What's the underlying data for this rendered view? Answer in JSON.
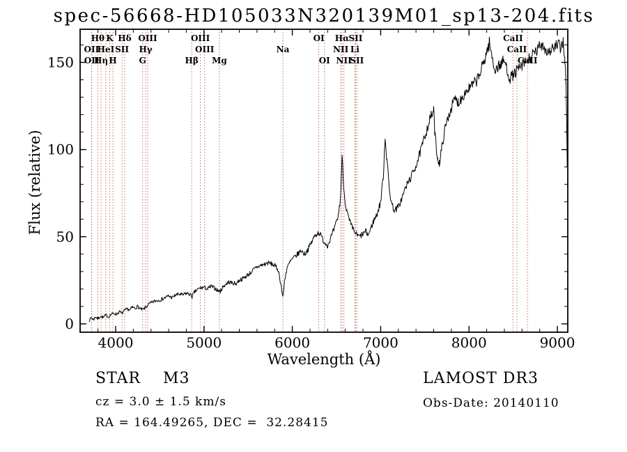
{
  "chart_data": {
    "type": "line",
    "title": "spec-56668-HD105033N320139M01_sp13-204.fits",
    "xlabel": "Wavelength (Å)",
    "ylabel": "Flux (relative)",
    "xlim": [
      3598,
      9118
    ],
    "ylim": [
      -4.8,
      169
    ],
    "xticks": [
      4000,
      5000,
      6000,
      7000,
      8000,
      9000
    ],
    "yticks": [
      0,
      50,
      100,
      150
    ],
    "x_minor_step": 200,
    "y_minor_step": 10,
    "grid": false,
    "legend": "none",
    "line_color": "#000000",
    "marker_color": "#c46a5f",
    "label_color": "#1a1a1a",
    "noise_seed": 7,
    "noise_amp": 1.0,
    "spectral_lines": [
      {
        "wl": 3727,
        "label": "OII",
        "row": 1
      },
      {
        "wl": 3729,
        "label": "OII",
        "row": 2
      },
      {
        "wl": 3798,
        "label": "Hθ",
        "row": 0
      },
      {
        "wl": 3835,
        "label": "Hη",
        "row": 2
      },
      {
        "wl": 3889,
        "label": "HeI",
        "row": 1
      },
      {
        "wl": 3933,
        "label": "K",
        "row": 0
      },
      {
        "wl": 3969,
        "label": "H",
        "row": 2
      },
      {
        "wl": 4072,
        "label": "SII",
        "row": 1
      },
      {
        "wl": 4102,
        "label": "Hδ",
        "row": 0
      },
      {
        "wl": 4305,
        "label": "G",
        "row": 2
      },
      {
        "wl": 4340,
        "label": "Hγ",
        "row": 1
      },
      {
        "wl": 4363,
        "label": "OIII",
        "row": 0
      },
      {
        "wl": 4861,
        "label": "Hβ",
        "row": 2
      },
      {
        "wl": 4959,
        "label": "OIII",
        "row": 0
      },
      {
        "wl": 5007,
        "label": "OIII",
        "row": 1
      },
      {
        "wl": 5175,
        "label": "Mg",
        "row": 2
      },
      {
        "wl": 5893,
        "label": "Na",
        "row": 1
      },
      {
        "wl": 6300,
        "label": "OI",
        "row": 0
      },
      {
        "wl": 6364,
        "label": "OI",
        "row": 2
      },
      {
        "wl": 6548,
        "label": "NII",
        "row": 1
      },
      {
        "wl": 6563,
        "label": "Hα",
        "row": 0
      },
      {
        "wl": 6584,
        "label": "NII",
        "row": 2
      },
      {
        "wl": 6708,
        "label": "Li",
        "row": 1
      },
      {
        "wl": 6716,
        "label": "SII",
        "row": 0
      },
      {
        "wl": 6731,
        "label": "SII",
        "row": 2
      },
      {
        "wl": 8498,
        "label": "CaII",
        "row": 0
      },
      {
        "wl": 8542,
        "label": "CaII",
        "row": 1
      },
      {
        "wl": 8662,
        "label": "CaII",
        "row": 2
      }
    ],
    "spectrum": [
      [
        3700,
        2
      ],
      [
        3725,
        3.5
      ],
      [
        3750,
        2.5
      ],
      [
        3775,
        4
      ],
      [
        3800,
        3
      ],
      [
        3830,
        4.5
      ],
      [
        3860,
        3.5
      ],
      [
        3890,
        5
      ],
      [
        3920,
        4
      ],
      [
        3950,
        5.5
      ],
      [
        3980,
        6
      ],
      [
        4010,
        5.5
      ],
      [
        4040,
        7
      ],
      [
        4070,
        6
      ],
      [
        4100,
        7.5
      ],
      [
        4130,
        8.5
      ],
      [
        4160,
        8
      ],
      [
        4190,
        9.5
      ],
      [
        4220,
        9
      ],
      [
        4250,
        10
      ],
      [
        4280,
        8.5
      ],
      [
        4310,
        8
      ],
      [
        4340,
        9.5
      ],
      [
        4370,
        11
      ],
      [
        4400,
        12
      ],
      [
        4440,
        13
      ],
      [
        4480,
        13.5
      ],
      [
        4520,
        14
      ],
      [
        4560,
        15
      ],
      [
        4600,
        16
      ],
      [
        4640,
        15
      ],
      [
        4680,
        16.5
      ],
      [
        4720,
        17
      ],
      [
        4760,
        16.5
      ],
      [
        4800,
        17.5
      ],
      [
        4840,
        17
      ],
      [
        4865,
        15.5
      ],
      [
        4890,
        18
      ],
      [
        4920,
        19.5
      ],
      [
        4960,
        20.5
      ],
      [
        5000,
        21
      ],
      [
        5040,
        20
      ],
      [
        5080,
        21.5
      ],
      [
        5120,
        20.5
      ],
      [
        5160,
        19
      ],
      [
        5185,
        18.5
      ],
      [
        5210,
        21
      ],
      [
        5240,
        22.5
      ],
      [
        5280,
        24
      ],
      [
        5320,
        23.5
      ],
      [
        5360,
        23
      ],
      [
        5400,
        25
      ],
      [
        5440,
        26
      ],
      [
        5480,
        27.5
      ],
      [
        5520,
        29
      ],
      [
        5560,
        31
      ],
      [
        5600,
        32.5
      ],
      [
        5640,
        33.5
      ],
      [
        5680,
        34
      ],
      [
        5720,
        35
      ],
      [
        5760,
        34.5
      ],
      [
        5800,
        33.5
      ],
      [
        5840,
        31
      ],
      [
        5870,
        23
      ],
      [
        5893,
        15
      ],
      [
        5915,
        26
      ],
      [
        5940,
        32
      ],
      [
        5980,
        36
      ],
      [
        6020,
        38
      ],
      [
        6060,
        40
      ],
      [
        6100,
        42
      ],
      [
        6140,
        40
      ],
      [
        6180,
        43
      ],
      [
        6220,
        47
      ],
      [
        6260,
        51
      ],
      [
        6300,
        52.5
      ],
      [
        6330,
        50
      ],
      [
        6360,
        47
      ],
      [
        6400,
        45
      ],
      [
        6440,
        50
      ],
      [
        6480,
        55
      ],
      [
        6520,
        62
      ],
      [
        6545,
        72
      ],
      [
        6563,
        96
      ],
      [
        6585,
        76
      ],
      [
        6610,
        66
      ],
      [
        6640,
        60
      ],
      [
        6670,
        56
      ],
      [
        6700,
        53
      ],
      [
        6730,
        51
      ],
      [
        6760,
        50
      ],
      [
        6800,
        51.5
      ],
      [
        6830,
        53
      ],
      [
        6860,
        51
      ],
      [
        6890,
        55
      ],
      [
        6920,
        59
      ],
      [
        6960,
        63
      ],
      [
        7000,
        70
      ],
      [
        7030,
        85
      ],
      [
        7050,
        107
      ],
      [
        7070,
        95
      ],
      [
        7100,
        76
      ],
      [
        7130,
        68
      ],
      [
        7160,
        65
      ],
      [
        7200,
        67
      ],
      [
        7240,
        72
      ],
      [
        7280,
        78
      ],
      [
        7320,
        82
      ],
      [
        7360,
        86
      ],
      [
        7400,
        91
      ],
      [
        7440,
        97
      ],
      [
        7480,
        104
      ],
      [
        7520,
        111
      ],
      [
        7560,
        118
      ],
      [
        7600,
        122
      ],
      [
        7615,
        108
      ],
      [
        7640,
        96
      ],
      [
        7665,
        92
      ],
      [
        7690,
        100
      ],
      [
        7720,
        110
      ],
      [
        7760,
        118
      ],
      [
        7800,
        124
      ],
      [
        7840,
        129
      ],
      [
        7880,
        127
      ],
      [
        7920,
        130
      ],
      [
        7960,
        133
      ],
      [
        8000,
        135
      ],
      [
        8040,
        137
      ],
      [
        8080,
        139
      ],
      [
        8120,
        143
      ],
      [
        8160,
        149
      ],
      [
        8200,
        156
      ],
      [
        8230,
        161
      ],
      [
        8260,
        153
      ],
      [
        8290,
        146
      ],
      [
        8320,
        147
      ],
      [
        8360,
        149
      ],
      [
        8400,
        151
      ],
      [
        8430,
        146
      ],
      [
        8460,
        141
      ],
      [
        8490,
        142
      ],
      [
        8520,
        144
      ],
      [
        8560,
        146
      ],
      [
        8600,
        148
      ],
      [
        8640,
        150
      ],
      [
        8680,
        152
      ],
      [
        8720,
        154
      ],
      [
        8760,
        156
      ],
      [
        8800,
        159
      ],
      [
        8830,
        161
      ],
      [
        8860,
        158
      ],
      [
        8890,
        156
      ],
      [
        8920,
        157
      ],
      [
        8950,
        158
      ],
      [
        8980,
        159
      ],
      [
        9010,
        160
      ],
      [
        9040,
        158
      ],
      [
        9065,
        162
      ],
      [
        9085,
        152
      ],
      [
        9098,
        138
      ],
      [
        9106,
        112
      ],
      [
        9112,
        90
      ]
    ]
  },
  "footer": {
    "class_label": "STAR    M3",
    "cz": "cz = 3.0 ± 1.5 km/s",
    "radec": "RA = 164.49265, DEC =  32.28415",
    "survey": "LAMOST DR3",
    "obs_date": "Obs-Date: 20140110"
  }
}
